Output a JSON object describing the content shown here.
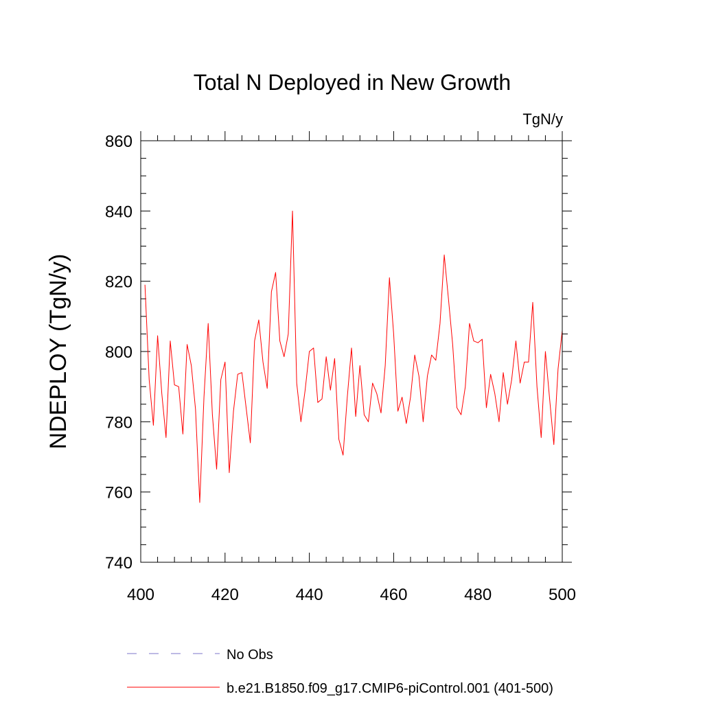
{
  "chart_data": {
    "type": "line",
    "title": "Total N Deployed in New Growth",
    "units": "TgN/y",
    "xlabel": "",
    "ylabel": "NDEPLOY  (TgN/y)",
    "xlim": [
      400,
      500
    ],
    "ylim": [
      740,
      860
    ],
    "xticks": [
      400,
      420,
      440,
      460,
      480,
      500
    ],
    "yticks": [
      740,
      760,
      780,
      800,
      820,
      840,
      860
    ],
    "series": [
      {
        "name": "b.e21.B1850.f09_g17.CMIP6-piControl.001 (401-500)",
        "color": "#ff0000",
        "x": [
          401,
          402,
          403,
          404,
          405,
          406,
          407,
          408,
          409,
          410,
          411,
          412,
          413,
          414,
          415,
          416,
          417,
          418,
          419,
          420,
          421,
          422,
          423,
          424,
          425,
          426,
          427,
          428,
          429,
          430,
          431,
          432,
          433,
          434,
          435,
          436,
          437,
          438,
          439,
          440,
          441,
          442,
          443,
          444,
          445,
          446,
          447,
          448,
          449,
          450,
          451,
          452,
          453,
          454,
          455,
          456,
          457,
          458,
          459,
          460,
          461,
          462,
          463,
          464,
          465,
          466,
          467,
          468,
          469,
          470,
          471,
          472,
          473,
          474,
          475,
          476,
          477,
          478,
          479,
          480,
          481,
          482,
          483,
          484,
          485,
          486,
          487,
          488,
          489,
          490,
          491,
          492,
          493,
          494,
          495,
          496,
          497,
          498,
          499,
          500
        ],
        "values": [
          819,
          792,
          779,
          804.5,
          788,
          775.5,
          803,
          790.5,
          790,
          776.5,
          802,
          796,
          783.5,
          757,
          787,
          808,
          782,
          766.5,
          792,
          797,
          765.5,
          783,
          793.5,
          794,
          784,
          774,
          803,
          809,
          797,
          789.5,
          817,
          822.5,
          803,
          798.5,
          805,
          840,
          791,
          780,
          789,
          800,
          801,
          785.5,
          786.5,
          798.5,
          789,
          798,
          775,
          770.5,
          787,
          801,
          781.5,
          796,
          782,
          780,
          791,
          788,
          782.5,
          796,
          821,
          805,
          783,
          787,
          779.5,
          787,
          799,
          793,
          780,
          793,
          799,
          797.5,
          808,
          827.5,
          815,
          802,
          784,
          782,
          790,
          808,
          803,
          802.5,
          803.5,
          784,
          793.5,
          788,
          780,
          794,
          785,
          792,
          803,
          791,
          797,
          797,
          814,
          790,
          775.5,
          800,
          786.5,
          773.5,
          795,
          806
        ]
      },
      {
        "name": "No Obs",
        "color": "#7b74c8",
        "x": [],
        "values": []
      }
    ],
    "legend": [
      {
        "label": "No Obs",
        "style": "dashed",
        "color": "#7b74c8"
      },
      {
        "label": "b.e21.B1850.f09_g17.CMIP6-piControl.001 (401-500)",
        "style": "solid",
        "color": "#ff0000"
      }
    ],
    "legend_position": "bottom"
  }
}
